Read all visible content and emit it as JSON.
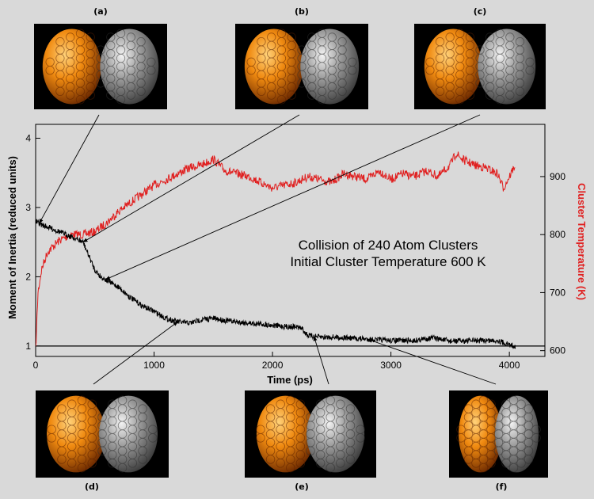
{
  "chart_data": {
    "type": "line",
    "annotations": [
      "Collision of 240 Atom Clusters",
      "Initial Cluster Temperature 600 K"
    ],
    "xlabel": "Time (ps)",
    "ylabel_left": "Moment of Inertia (reduced units)",
    "ylabel_right": "Cluster Temperature (K)",
    "xlim": [
      0,
      4300
    ],
    "ylim_left": [
      0.85,
      4.2
    ],
    "ylim_right": [
      590,
      990
    ],
    "x_ticks": [
      0,
      1000,
      2000,
      3000,
      4000
    ],
    "y_left_ticks": [
      1,
      2,
      3,
      4
    ],
    "y_right_ticks": [
      600,
      700,
      800,
      900
    ],
    "reference_line_y": 1,
    "grid": false,
    "series": [
      {
        "axis": "left",
        "color": "#000000",
        "x": [
          0,
          50,
          100,
          200,
          300,
          400,
          450,
          500,
          550,
          600,
          700,
          800,
          900,
          1000,
          1100,
          1200,
          1300,
          1400,
          1500,
          1600,
          1700,
          1800,
          1900,
          2000,
          2100,
          2200,
          2250,
          2300,
          2400,
          2500,
          2600,
          2800,
          3000,
          3200,
          3350,
          3500,
          3700,
          3900,
          4000,
          4050
        ],
        "values": [
          2.8,
          2.75,
          2.72,
          2.65,
          2.58,
          2.5,
          2.3,
          2.1,
          2.0,
          1.95,
          1.85,
          1.7,
          1.58,
          1.5,
          1.4,
          1.35,
          1.33,
          1.38,
          1.4,
          1.37,
          1.35,
          1.33,
          1.32,
          1.3,
          1.28,
          1.28,
          1.25,
          1.15,
          1.13,
          1.13,
          1.12,
          1.1,
          1.08,
          1.08,
          1.12,
          1.07,
          1.08,
          1.08,
          1.02,
          1.0
        ]
      },
      {
        "axis": "right",
        "color": "#e02020",
        "x": [
          0,
          20,
          50,
          100,
          200,
          300,
          400,
          500,
          600,
          700,
          800,
          900,
          1000,
          1100,
          1200,
          1300,
          1400,
          1500,
          1600,
          1700,
          1800,
          1900,
          2000,
          2100,
          2200,
          2300,
          2400,
          2500,
          2600,
          2700,
          2800,
          2900,
          3000,
          3100,
          3200,
          3300,
          3400,
          3500,
          3550,
          3600,
          3700,
          3800,
          3900,
          3950,
          4000,
          4050
        ],
        "values": [
          600,
          700,
          740,
          770,
          790,
          800,
          800,
          805,
          820,
          840,
          855,
          870,
          885,
          895,
          905,
          915,
          920,
          930,
          910,
          905,
          900,
          890,
          880,
          885,
          890,
          900,
          895,
          890,
          905,
          900,
          895,
          910,
          895,
          905,
          900,
          910,
          900,
          920,
          940,
          930,
          920,
          915,
          905,
          880,
          900,
          920
        ]
      }
    ],
    "panel_labels": [
      "(a)",
      "(b)",
      "(c)",
      "(d)",
      "(e)",
      "(f)"
    ],
    "panel_pointers_time_ps": [
      30,
      400,
      590,
      1200,
      2350,
      2800
    ]
  }
}
